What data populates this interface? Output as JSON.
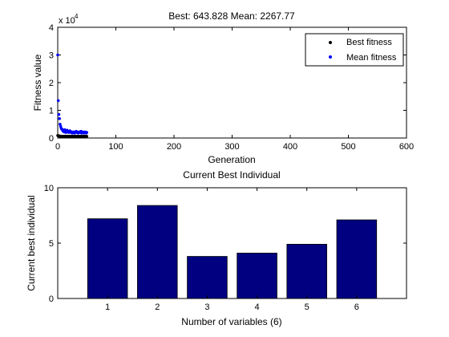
{
  "chart_data": [
    {
      "type": "scatter",
      "title": "Best: 643.828 Mean: 2267.77",
      "xlabel": "Generation",
      "ylabel": "Fitness value",
      "xlim": [
        0,
        600
      ],
      "ylim": [
        0,
        4
      ],
      "y_multiplier_label": "x 10",
      "y_multiplier_exponent": "4",
      "xticks": [
        "0",
        "100",
        "200",
        "300",
        "400",
        "500",
        "600"
      ],
      "yticks": [
        "0",
        "1",
        "2",
        "3",
        "4"
      ],
      "legend": {
        "placement": "top-right"
      },
      "grid": false,
      "series": [
        {
          "name": "Best fitness",
          "color": "#000000",
          "marker": "point",
          "points": [
            [
              0,
              0.09
            ],
            [
              1,
              0.08
            ],
            [
              2,
              0.08
            ],
            [
              3,
              0.07
            ],
            [
              4,
              0.07
            ],
            [
              5,
              0.06
            ],
            [
              6,
              0.06
            ],
            [
              7,
              0.06
            ],
            [
              8,
              0.06
            ],
            [
              9,
              0.06
            ],
            [
              10,
              0.06
            ],
            [
              11,
              0.06
            ],
            [
              12,
              0.06
            ],
            [
              13,
              0.06
            ],
            [
              14,
              0.06
            ],
            [
              15,
              0.06
            ],
            [
              16,
              0.06
            ],
            [
              17,
              0.06
            ],
            [
              18,
              0.06
            ],
            [
              19,
              0.06
            ],
            [
              20,
              0.06
            ],
            [
              21,
              0.06
            ],
            [
              22,
              0.06
            ],
            [
              23,
              0.06
            ],
            [
              24,
              0.06
            ],
            [
              25,
              0.06
            ],
            [
              26,
              0.06
            ],
            [
              27,
              0.06
            ],
            [
              28,
              0.06
            ],
            [
              29,
              0.06
            ],
            [
              30,
              0.06
            ],
            [
              31,
              0.06
            ],
            [
              32,
              0.06
            ],
            [
              33,
              0.06
            ],
            [
              34,
              0.06
            ],
            [
              35,
              0.06
            ],
            [
              36,
              0.06
            ],
            [
              37,
              0.06
            ],
            [
              38,
              0.06
            ],
            [
              39,
              0.06
            ],
            [
              40,
              0.06
            ],
            [
              41,
              0.06
            ],
            [
              42,
              0.06
            ],
            [
              43,
              0.06
            ],
            [
              44,
              0.06
            ],
            [
              45,
              0.06
            ],
            [
              46,
              0.06
            ],
            [
              47,
              0.06
            ],
            [
              48,
              0.06
            ],
            [
              49,
              0.06
            ],
            [
              50,
              0.06
            ]
          ]
        },
        {
          "name": "Mean fitness",
          "color": "#0000ff",
          "marker": "point",
          "points": [
            [
              0,
              3.0
            ],
            [
              1,
              1.35
            ],
            [
              2,
              0.85
            ],
            [
              3,
              0.7
            ],
            [
              4,
              0.5
            ],
            [
              5,
              0.42
            ],
            [
              6,
              0.35
            ],
            [
              7,
              0.32
            ],
            [
              8,
              0.3
            ],
            [
              9,
              0.25
            ],
            [
              10,
              0.28
            ],
            [
              11,
              0.22
            ],
            [
              12,
              0.3
            ],
            [
              13,
              0.25
            ],
            [
              14,
              0.2
            ],
            [
              15,
              0.22
            ],
            [
              16,
              0.28
            ],
            [
              17,
              0.25
            ],
            [
              18,
              0.22
            ],
            [
              19,
              0.2
            ],
            [
              20,
              0.24
            ],
            [
              21,
              0.26
            ],
            [
              22,
              0.22
            ],
            [
              23,
              0.2
            ],
            [
              24,
              0.22
            ],
            [
              25,
              0.18
            ],
            [
              26,
              0.2
            ],
            [
              27,
              0.22
            ],
            [
              28,
              0.2
            ],
            [
              29,
              0.18
            ],
            [
              30,
              0.22
            ],
            [
              31,
              0.2
            ],
            [
              32,
              0.24
            ],
            [
              33,
              0.22
            ],
            [
              34,
              0.2
            ],
            [
              35,
              0.18
            ],
            [
              36,
              0.2
            ],
            [
              37,
              0.22
            ],
            [
              38,
              0.2
            ],
            [
              39,
              0.2
            ],
            [
              40,
              0.24
            ],
            [
              41,
              0.18
            ],
            [
              42,
              0.2
            ],
            [
              43,
              0.22
            ],
            [
              44,
              0.2
            ],
            [
              45,
              0.18
            ],
            [
              46,
              0.2
            ],
            [
              47,
              0.22
            ],
            [
              48,
              0.2
            ],
            [
              49,
              0.18
            ],
            [
              50,
              0.2
            ]
          ]
        }
      ]
    },
    {
      "type": "bar",
      "title": "Current Best Individual",
      "xlabel": "Number of variables (6)",
      "ylabel": "Current best individual",
      "categories": [
        "1",
        "2",
        "3",
        "4",
        "5",
        "6"
      ],
      "values": [
        7.2,
        8.4,
        3.8,
        4.1,
        4.9,
        7.1
      ],
      "ylim": [
        0,
        10
      ],
      "yticks": [
        "0",
        "5",
        "10"
      ],
      "bar_color": "#000080",
      "grid": false
    }
  ]
}
